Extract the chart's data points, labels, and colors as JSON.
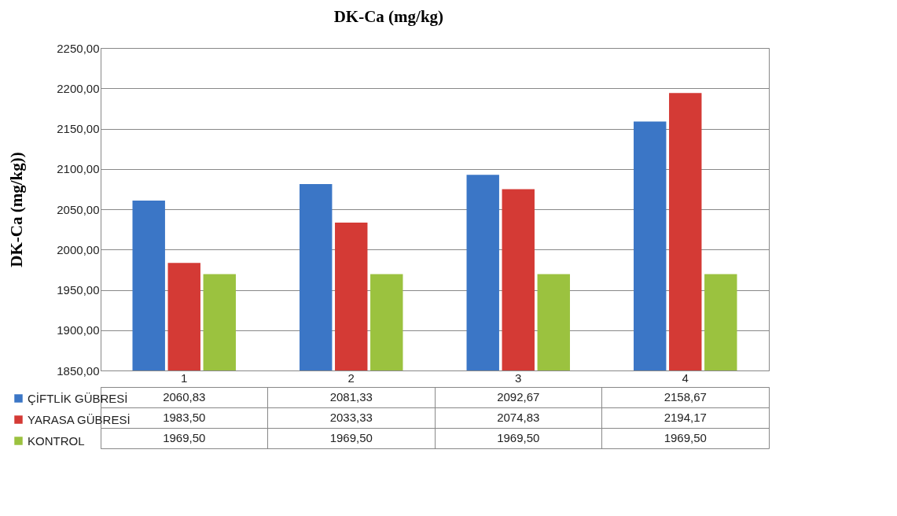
{
  "chart_data": {
    "type": "bar",
    "title": "DK-Ca (mg/kg)",
    "ylabel": "DK-Ca (mg/kg))",
    "categories": [
      "1",
      "2",
      "3",
      "4"
    ],
    "series": [
      {
        "name": "ÇİFTLİK GÜBRESİ",
        "color": "#3b76c6",
        "values": [
          2060.83,
          2081.33,
          2092.67,
          2158.67
        ],
        "value_labels": [
          "2060,83",
          "2081,33",
          "2092,67",
          "2158,67"
        ]
      },
      {
        "name": "YARASA GÜBRESİ",
        "color": "#d43a35",
        "values": [
          1983.5,
          2033.33,
          2074.83,
          2194.17
        ],
        "value_labels": [
          "1983,50",
          "2033,33",
          "2074,83",
          "2194,17"
        ]
      },
      {
        "name": "KONTROL",
        "color": "#9bc23f",
        "values": [
          1969.5,
          1969.5,
          1969.5,
          1969.5
        ],
        "value_labels": [
          "1969,50",
          "1969,50",
          "1969,50",
          "1969,50"
        ]
      }
    ],
    "ylim": [
      1850,
      2250
    ],
    "yticks": [
      {
        "value": 1850,
        "label": "1850,00"
      },
      {
        "value": 1900,
        "label": "1900,00"
      },
      {
        "value": 1950,
        "label": "1950,00"
      },
      {
        "value": 2000,
        "label": "2000,00"
      },
      {
        "value": 2050,
        "label": "2050,00"
      },
      {
        "value": 2100,
        "label": "2100,00"
      },
      {
        "value": 2150,
        "label": "2150,00"
      },
      {
        "value": 2200,
        "label": "2200,00"
      },
      {
        "value": 2250,
        "label": "2250,00"
      }
    ],
    "grid": "y",
    "legend": "bottom"
  }
}
